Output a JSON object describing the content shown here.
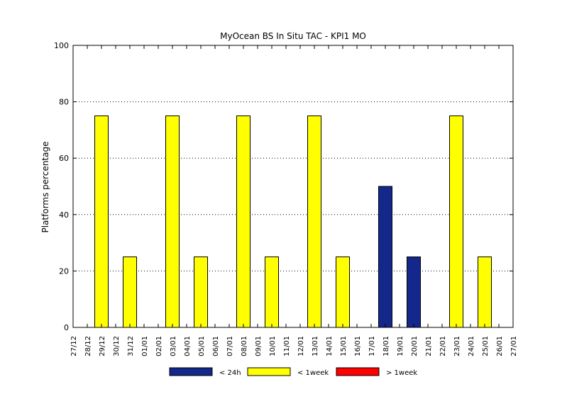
{
  "chart_data": {
    "type": "bar",
    "title": "MyOcean  BS In Situ TAC - KPI1  MO",
    "xlabel": "",
    "ylabel": "Platforms percentage",
    "ylim": [
      0,
      100
    ],
    "yticks": [
      0,
      20,
      40,
      60,
      80,
      100
    ],
    "grid": "horizontal dotted",
    "legend_position": "bottom",
    "categories": [
      "27/12",
      "28/12",
      "29/12",
      "30/12",
      "31/12",
      "01/01",
      "02/01",
      "03/01",
      "04/01",
      "05/01",
      "06/01",
      "07/01",
      "08/01",
      "09/01",
      "10/01",
      "11/01",
      "12/01",
      "13/01",
      "14/01",
      "15/01",
      "16/01",
      "17/01",
      "18/01",
      "19/01",
      "20/01",
      "21/01",
      "22/01",
      "23/01",
      "24/01",
      "25/01",
      "26/01",
      "27/01"
    ],
    "bars": [
      {
        "date": "29/12",
        "series": "< 1week",
        "value": 75
      },
      {
        "date": "31/12",
        "series": "< 1week",
        "value": 25
      },
      {
        "date": "03/01",
        "series": "< 1week",
        "value": 75
      },
      {
        "date": "05/01",
        "series": "< 1week",
        "value": 25
      },
      {
        "date": "08/01",
        "series": "< 1week",
        "value": 75
      },
      {
        "date": "10/01",
        "series": "< 1week",
        "value": 25
      },
      {
        "date": "13/01",
        "series": "< 1week",
        "value": 75
      },
      {
        "date": "15/01",
        "series": "< 1week",
        "value": 25
      },
      {
        "date": "18/01",
        "series": "< 24h",
        "value": 50
      },
      {
        "date": "20/01",
        "series": "< 24h",
        "value": 25
      },
      {
        "date": "23/01",
        "series": "< 1week",
        "value": 75
      },
      {
        "date": "25/01",
        "series": "< 1week",
        "value": 25
      }
    ],
    "series": [
      {
        "name": "< 24h",
        "color": "#14288c"
      },
      {
        "name": "< 1week",
        "color": "#ffff00"
      },
      {
        "name": "> 1week",
        "color": "#ff0000"
      }
    ]
  }
}
